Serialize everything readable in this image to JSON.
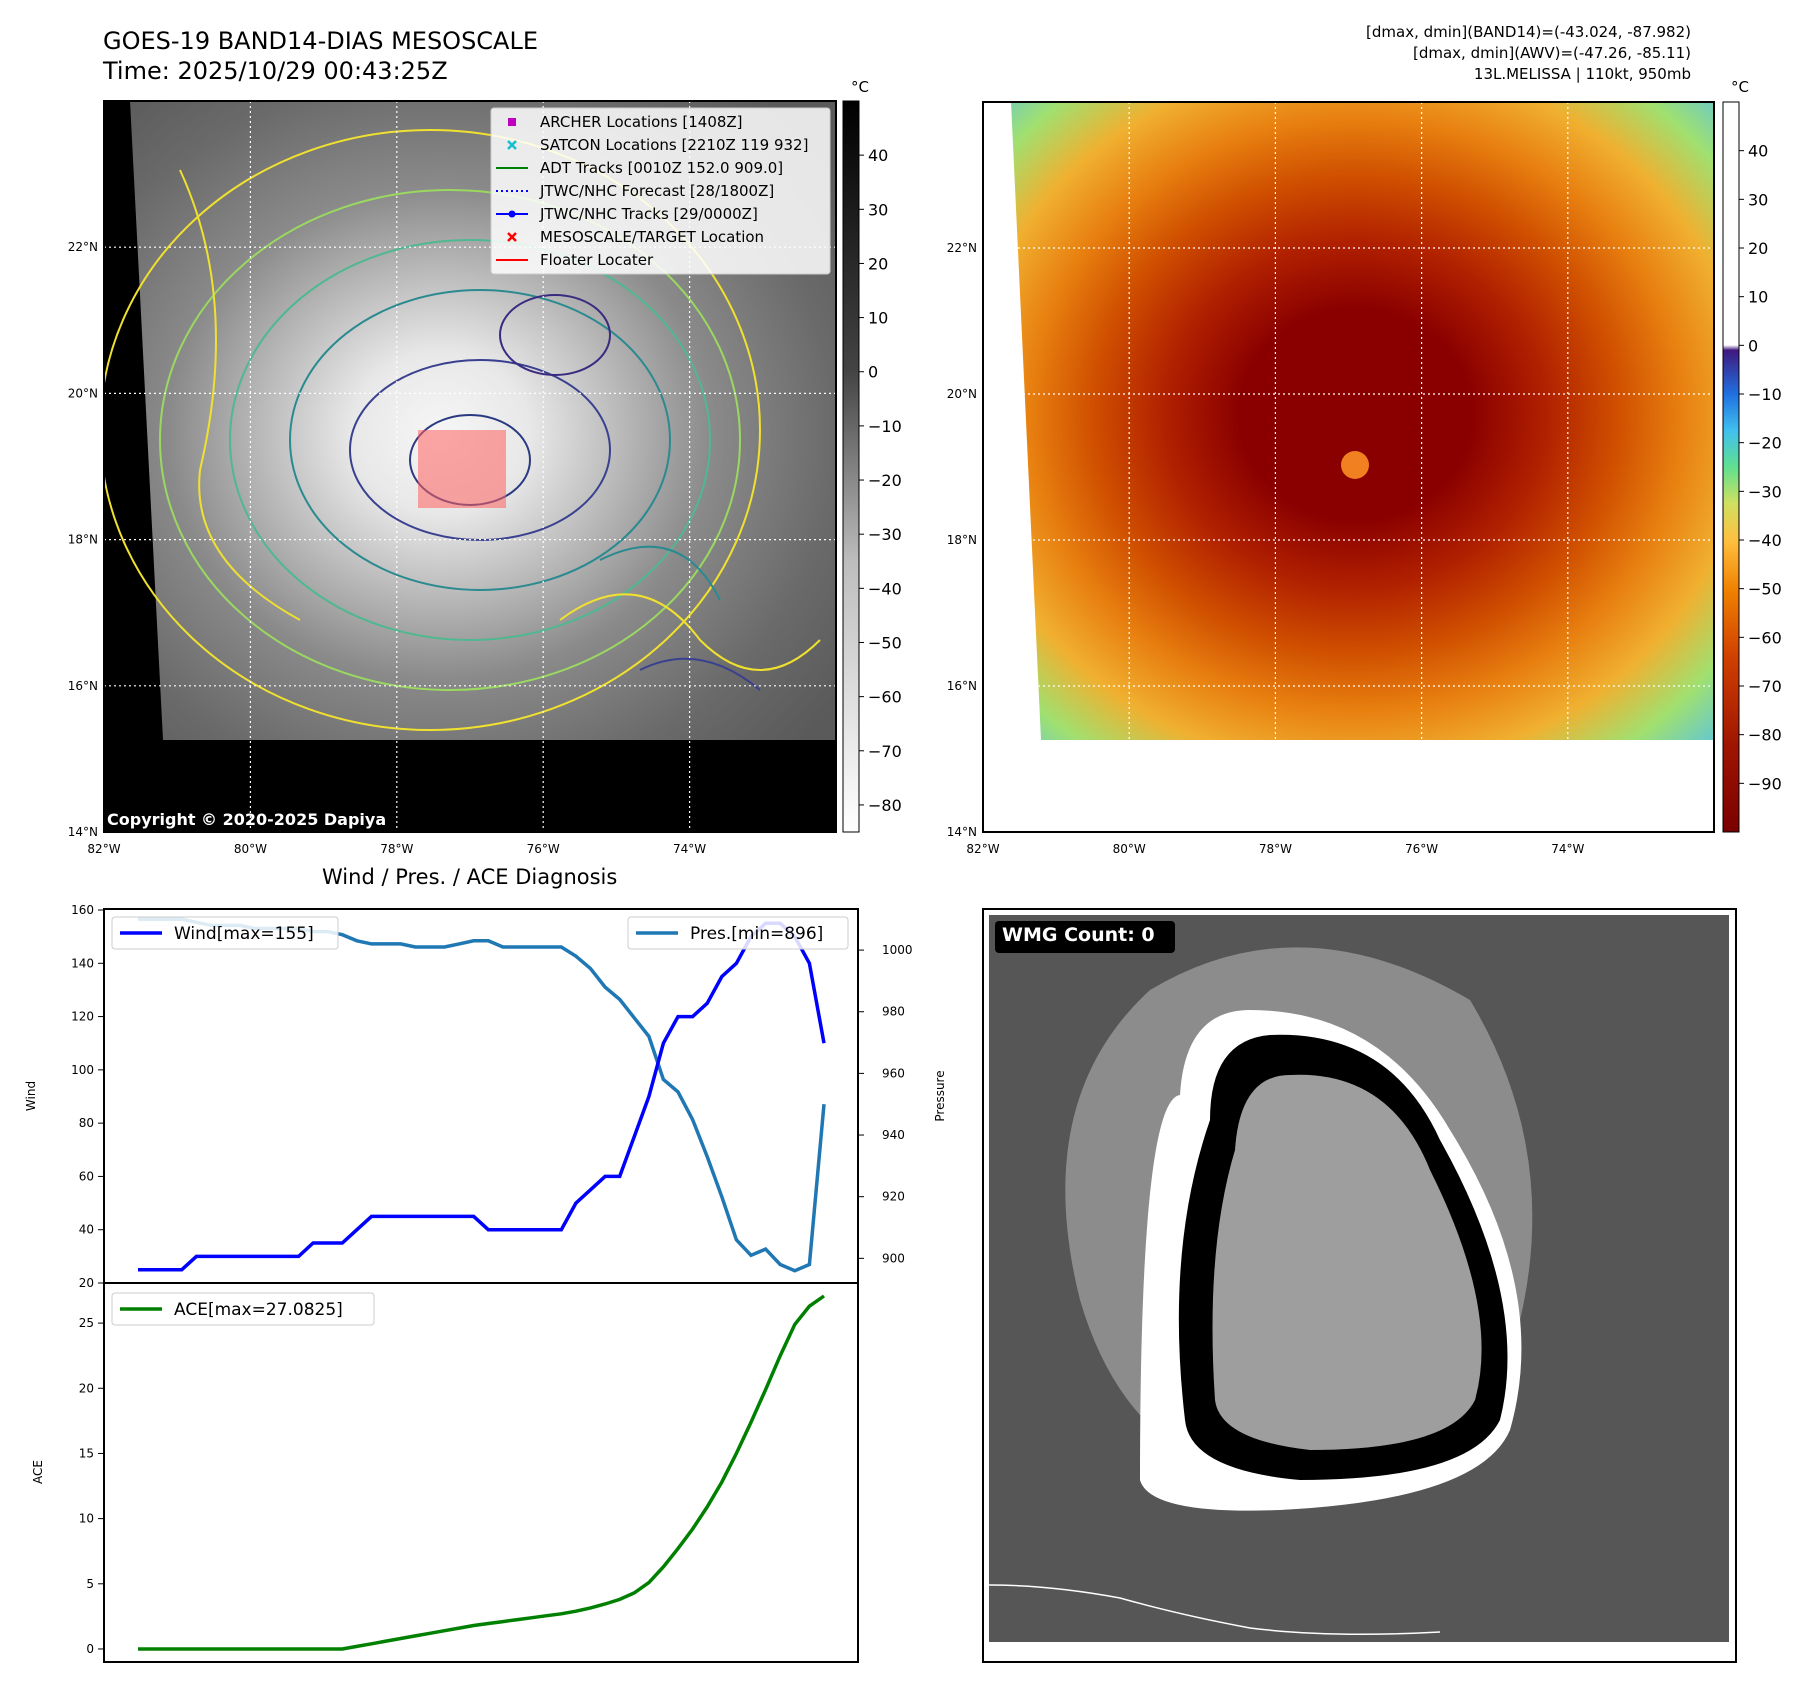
{
  "header": {
    "title_line1": "GOES-19 BAND14-DIAS MESOSCALE",
    "title_line2": "Time: 2025/10/29 00:43:25Z",
    "info_line1": "[dmax, dmin](BAND14)=(-43.024, -87.982)",
    "info_line2": "[dmax, dmin](AWV)=(-47.26, -85.11)",
    "info_line3": "13L.MELISSA | 110kt, 950mb"
  },
  "map_axes": {
    "lat_labels": [
      "22°N",
      "20°N",
      "18°N",
      "16°N",
      "14°N"
    ],
    "lat_values": [
      22,
      20,
      18,
      16,
      14
    ],
    "lon_labels": [
      "82°W",
      "80°W",
      "78°W",
      "76°W",
      "74°W"
    ],
    "lon_values": [
      -82,
      -80,
      -78,
      -76,
      -74
    ],
    "lon_range": [
      -82,
      -72
    ],
    "lat_range": [
      14,
      24
    ]
  },
  "colorbar_left": {
    "unit": "°C",
    "ticks": [
      "40",
      "30",
      "20",
      "10",
      "0",
      "−10",
      "−20",
      "−30",
      "−40",
      "−50",
      "−60",
      "−70",
      "−80"
    ],
    "tick_values": [
      40,
      30,
      20,
      10,
      0,
      -10,
      -20,
      -30,
      -40,
      -50,
      -60,
      -70,
      -80
    ],
    "range": [
      -85,
      50
    ]
  },
  "colorbar_right": {
    "unit": "°C",
    "ticks": [
      "40",
      "30",
      "20",
      "10",
      "0",
      "−10",
      "−20",
      "−30",
      "−40",
      "−50",
      "−60",
      "−70",
      "−80",
      "−90"
    ],
    "tick_values": [
      40,
      30,
      20,
      10,
      0,
      -10,
      -20,
      -30,
      -40,
      -50,
      -60,
      -70,
      -80,
      -90
    ],
    "range": [
      -100,
      50
    ]
  },
  "legend_map": {
    "items": [
      {
        "label": "ARCHER Locations [1408Z]",
        "color": "#bf00bf",
        "marker": "square"
      },
      {
        "label": "SATCON Locations [2210Z 119 932]",
        "color": "#17becf",
        "marker": "x"
      },
      {
        "label": "ADT Tracks [0010Z 152.0 909.0]",
        "color": "#008000",
        "marker": "line"
      },
      {
        "label": "JTWC/NHC Forecast [28/1800Z]",
        "color": "#0000ff",
        "marker": "dotted"
      },
      {
        "label": "JTWC/NHC Tracks [29/0000Z]",
        "color": "#0000ff",
        "marker": "line-dot"
      },
      {
        "label": "MESOSCALE/TARGET Location",
        "color": "#ff0000",
        "marker": "x"
      },
      {
        "label": "Floater Locater",
        "color": "#ff0000",
        "marker": "line"
      }
    ]
  },
  "copyright": "Copyright © 2020-2025 Dapiya",
  "diag_title": "Wind / Pres. / ACE Diagnosis",
  "wmg_label": "WMG Count: 0",
  "chart_data": [
    {
      "type": "line",
      "title": "Wind / Pres. / ACE Diagnosis",
      "ylabel": "Wind",
      "ylim": [
        20,
        160
      ],
      "yticks": [
        "160",
        "140",
        "120",
        "100",
        "80",
        "60",
        "40",
        "20"
      ],
      "ytick_values": [
        160,
        140,
        120,
        100,
        80,
        60,
        40,
        20
      ],
      "series": [
        {
          "name": "Wind[max=155]",
          "color": "#0000ff",
          "values": [
            25,
            25,
            25,
            25,
            30,
            30,
            30,
            30,
            30,
            30,
            30,
            30,
            35,
            35,
            35,
            40,
            45,
            45,
            45,
            45,
            45,
            45,
            45,
            45,
            40,
            40,
            40,
            40,
            40,
            40,
            50,
            55,
            60,
            60,
            75,
            90,
            110,
            120,
            120,
            125,
            135,
            140,
            150,
            155,
            155,
            150,
            140,
            110
          ]
        }
      ]
    },
    {
      "type": "line",
      "ylabel": "Pressure",
      "ylim": [
        892,
        1013
      ],
      "yticks": [
        "1000",
        "980",
        "960",
        "940",
        "920",
        "900"
      ],
      "ytick_values": [
        1000,
        980,
        960,
        940,
        920,
        900
      ],
      "series": [
        {
          "name": "Pres.[min=896]",
          "color": "#1f77b4",
          "values": [
            1010,
            1010,
            1010,
            1010,
            1009,
            1008,
            1008,
            1008,
            1007,
            1007,
            1007,
            1007,
            1006,
            1006,
            1005,
            1003,
            1002,
            1002,
            1002,
            1001,
            1001,
            1001,
            1002,
            1003,
            1003,
            1001,
            1001,
            1001,
            1001,
            1001,
            998,
            994,
            988,
            984,
            978,
            972,
            958,
            954,
            945,
            933,
            920,
            906,
            901,
            903,
            898,
            896,
            898,
            950
          ]
        }
      ]
    },
    {
      "type": "line",
      "ylabel": "ACE",
      "ylim": [
        -1,
        28
      ],
      "yticks": [
        "25",
        "20",
        "15",
        "10",
        "5",
        "0"
      ],
      "ytick_values": [
        25,
        20,
        15,
        10,
        5,
        0
      ],
      "series": [
        {
          "name": "ACE[max=27.0825]",
          "color": "#008000",
          "values": [
            0,
            0,
            0,
            0,
            0,
            0,
            0,
            0,
            0,
            0,
            0,
            0,
            0,
            0,
            0,
            0.2,
            0.4,
            0.6,
            0.8,
            1.0,
            1.2,
            1.4,
            1.6,
            1.8,
            1.95,
            2.1,
            2.25,
            2.4,
            2.55,
            2.7,
            2.9,
            3.15,
            3.45,
            3.8,
            4.3,
            5.1,
            6.3,
            7.7,
            9.2,
            10.9,
            12.8,
            15.0,
            17.4,
            19.9,
            22.5,
            24.9,
            26.3,
            27.08
          ]
        }
      ]
    }
  ]
}
